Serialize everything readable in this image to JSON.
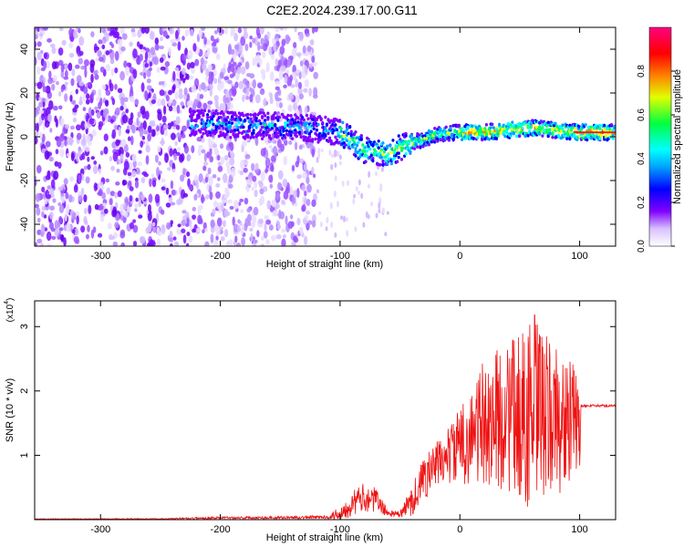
{
  "title": "C2E2.2024.239.17.00.G11",
  "chart_data": [
    {
      "type": "heatmap",
      "xlabel": "Height of straight line (km)",
      "ylabel": "Frequency (Hz)",
      "xlim": [
        -355,
        130
      ],
      "ylim": [
        -50,
        50
      ],
      "xticks": [
        -300,
        -200,
        -100,
        0,
        100
      ],
      "yticks": [
        -40,
        -20,
        0,
        20,
        40
      ],
      "colorbar": {
        "label": "Normalized spectral amplitude",
        "range": [
          0,
          1
        ],
        "ticks": [
          "0.0",
          "0.2",
          "0.4",
          "0.6",
          "0.8"
        ],
        "colormap": [
          "#f0e6ff",
          "#8000ff",
          "#0000ff",
          "#00a0ff",
          "#00ffff",
          "#00ff60",
          "#ffff00",
          "#ff8000",
          "#ff0000",
          "#ff0080"
        ]
      },
      "ridge": {
        "x": [
          -225,
          -200,
          -175,
          -150,
          -125,
          -100,
          -80,
          -60,
          -50,
          -40,
          -20,
          0,
          20,
          40,
          60,
          80,
          100,
          130
        ],
        "freq": [
          6,
          6,
          5,
          5,
          4,
          2,
          -6,
          -8,
          -5,
          -3,
          1,
          2,
          2,
          3,
          4,
          3,
          2,
          2
        ]
      },
      "grid": false
    },
    {
      "type": "line",
      "xlabel": "Height of straight line (km)",
      "ylabel": "SNR (10 * v/v)",
      "yscale_label": "(x10",
      "yscale_exp": "4",
      "xlim": [
        -355,
        130
      ],
      "ylim": [
        0,
        3.4
      ],
      "xticks": [
        -300,
        -200,
        -100,
        0,
        100
      ],
      "yticks": [
        1,
        2,
        3
      ],
      "color": "#ee1111",
      "series": [
        {
          "x": [
            -355,
            -250,
            -200,
            -150,
            -110,
            -100,
            -90,
            -80,
            -70,
            -60,
            -50,
            -40,
            -30,
            -20,
            -10,
            0,
            10,
            20,
            30,
            40,
            50,
            60,
            65,
            70,
            80,
            90,
            100,
            101,
            130
          ],
          "mean": [
            0.01,
            0.01,
            0.03,
            0.03,
            0.04,
            0.1,
            0.25,
            0.35,
            0.3,
            0.1,
            0.08,
            0.3,
            0.65,
            0.85,
            1.0,
            1.15,
            1.3,
            1.5,
            1.55,
            1.6,
            1.6,
            1.65,
            1.65,
            1.6,
            1.55,
            1.5,
            1.5,
            1.77,
            1.77
          ],
          "amp": [
            0.005,
            0.01,
            0.02,
            0.02,
            0.03,
            0.12,
            0.2,
            0.22,
            0.2,
            0.05,
            0.05,
            0.25,
            0.35,
            0.35,
            0.45,
            0.6,
            0.75,
            1.0,
            1.1,
            1.2,
            1.3,
            1.6,
            1.6,
            1.3,
            1.2,
            1.0,
            0.9,
            0.02,
            0.02
          ]
        }
      ]
    }
  ]
}
